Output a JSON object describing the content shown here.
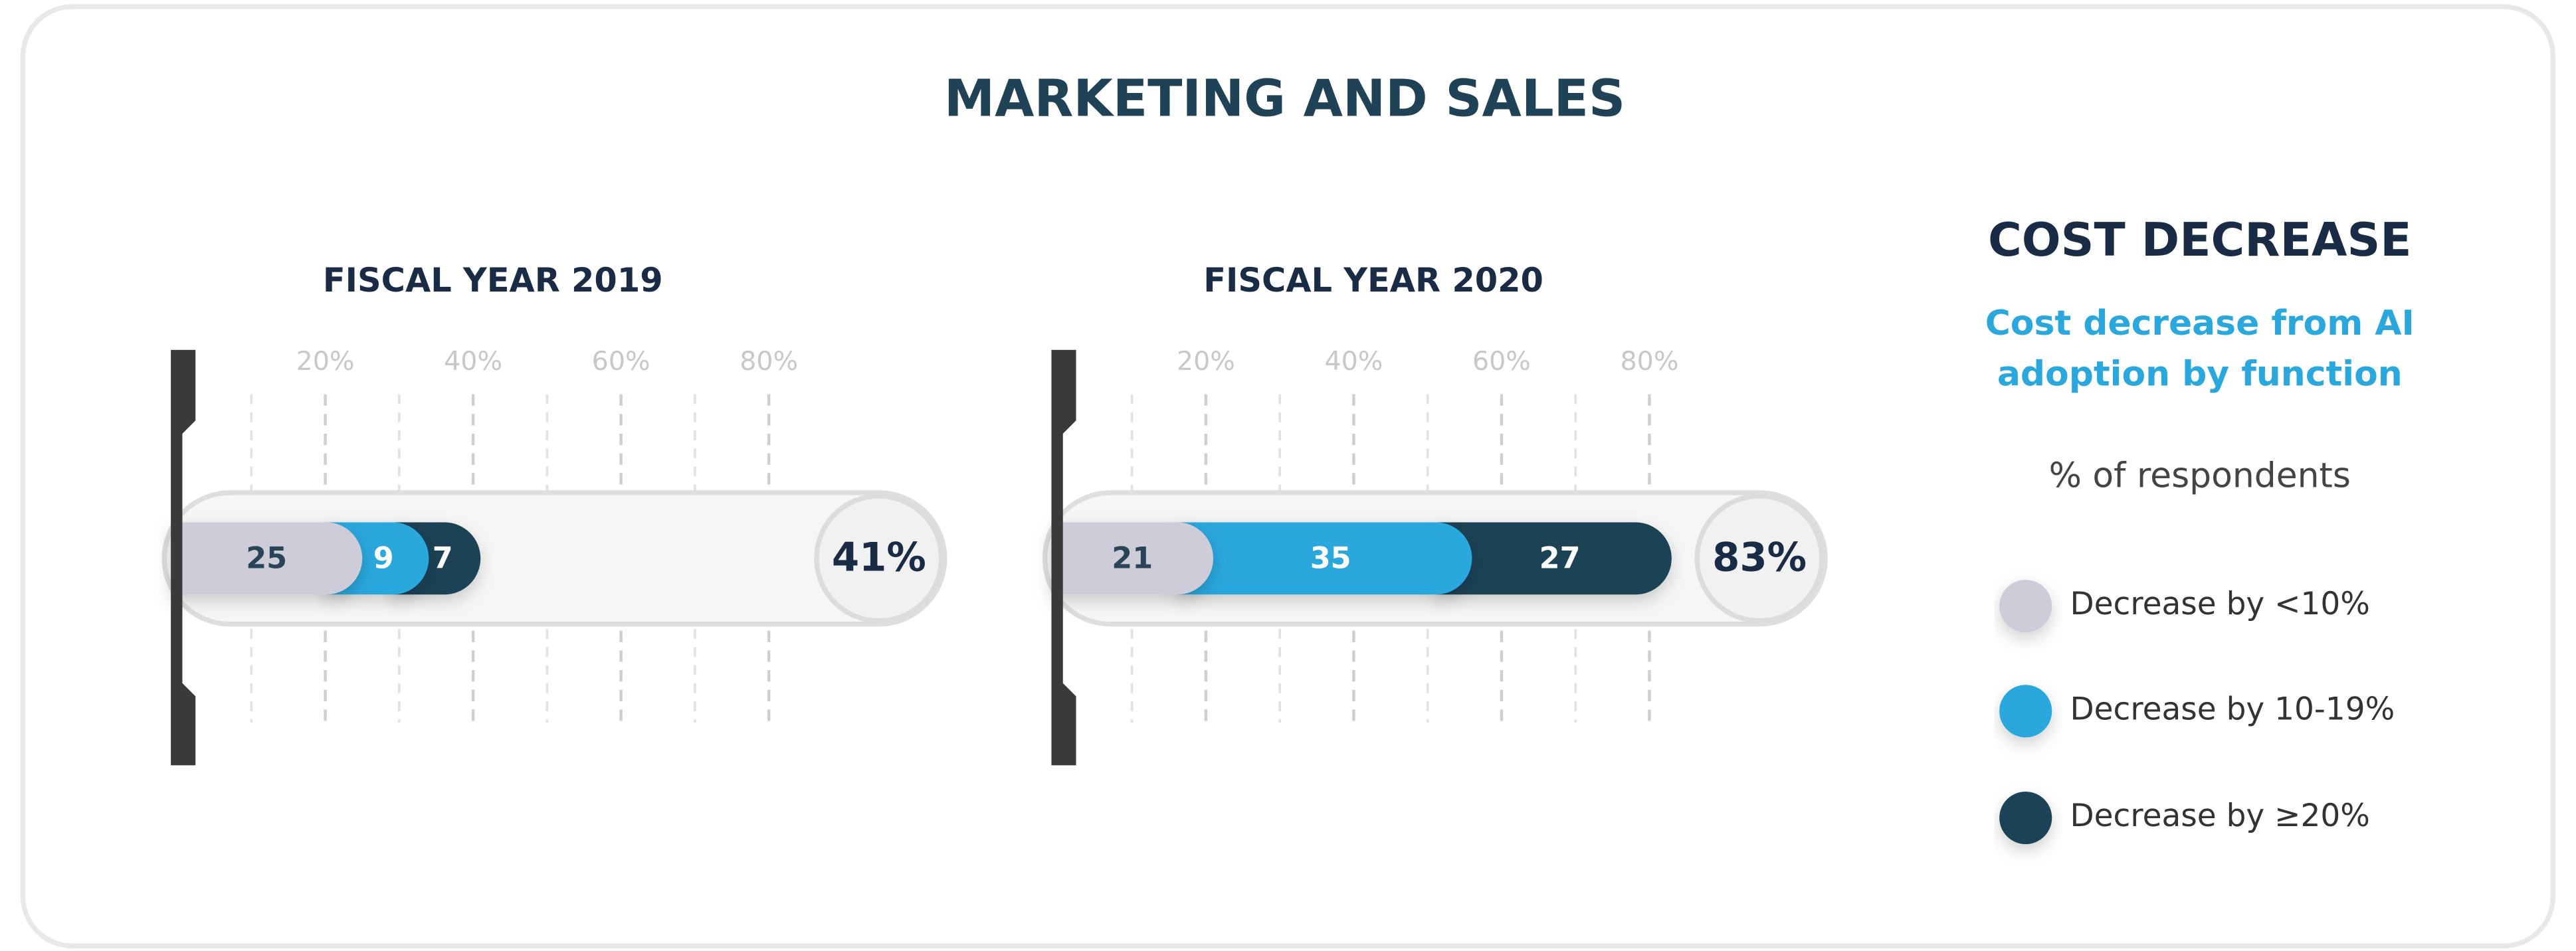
{
  "title": "MARKETING AND SALES",
  "legend_panel": {
    "title": "COST DECREASE",
    "subtitle_lines": [
      "Cost decrease from AI",
      "adoption by function"
    ],
    "note": "% of respondents"
  },
  "chart_data": {
    "type": "bar",
    "orientation": "horizontal",
    "stacked": true,
    "categories": [
      "FISCAL YEAR 2019",
      "FISCAL YEAR 2020"
    ],
    "series": [
      {
        "name": "Decrease by <10%",
        "color": "#cdccd8",
        "values": [
          25,
          21
        ]
      },
      {
        "name": "Decrease by 10-19%",
        "color": "#2aa7dd",
        "values": [
          9,
          35
        ]
      },
      {
        "name": "Decrease by ≥20%",
        "color": "#1f4257",
        "values": [
          7,
          27
        ]
      }
    ],
    "totals": [
      41,
      83
    ],
    "total_labels": [
      "41%",
      "83%"
    ],
    "xlim": [
      0,
      100
    ],
    "xticks": [
      {
        "value": 20,
        "label": "20%"
      },
      {
        "value": 40,
        "label": "40%"
      },
      {
        "value": 60,
        "label": "60%"
      },
      {
        "value": 80,
        "label": "80%"
      }
    ],
    "minor_xticks": [
      10,
      30,
      50,
      70
    ]
  }
}
